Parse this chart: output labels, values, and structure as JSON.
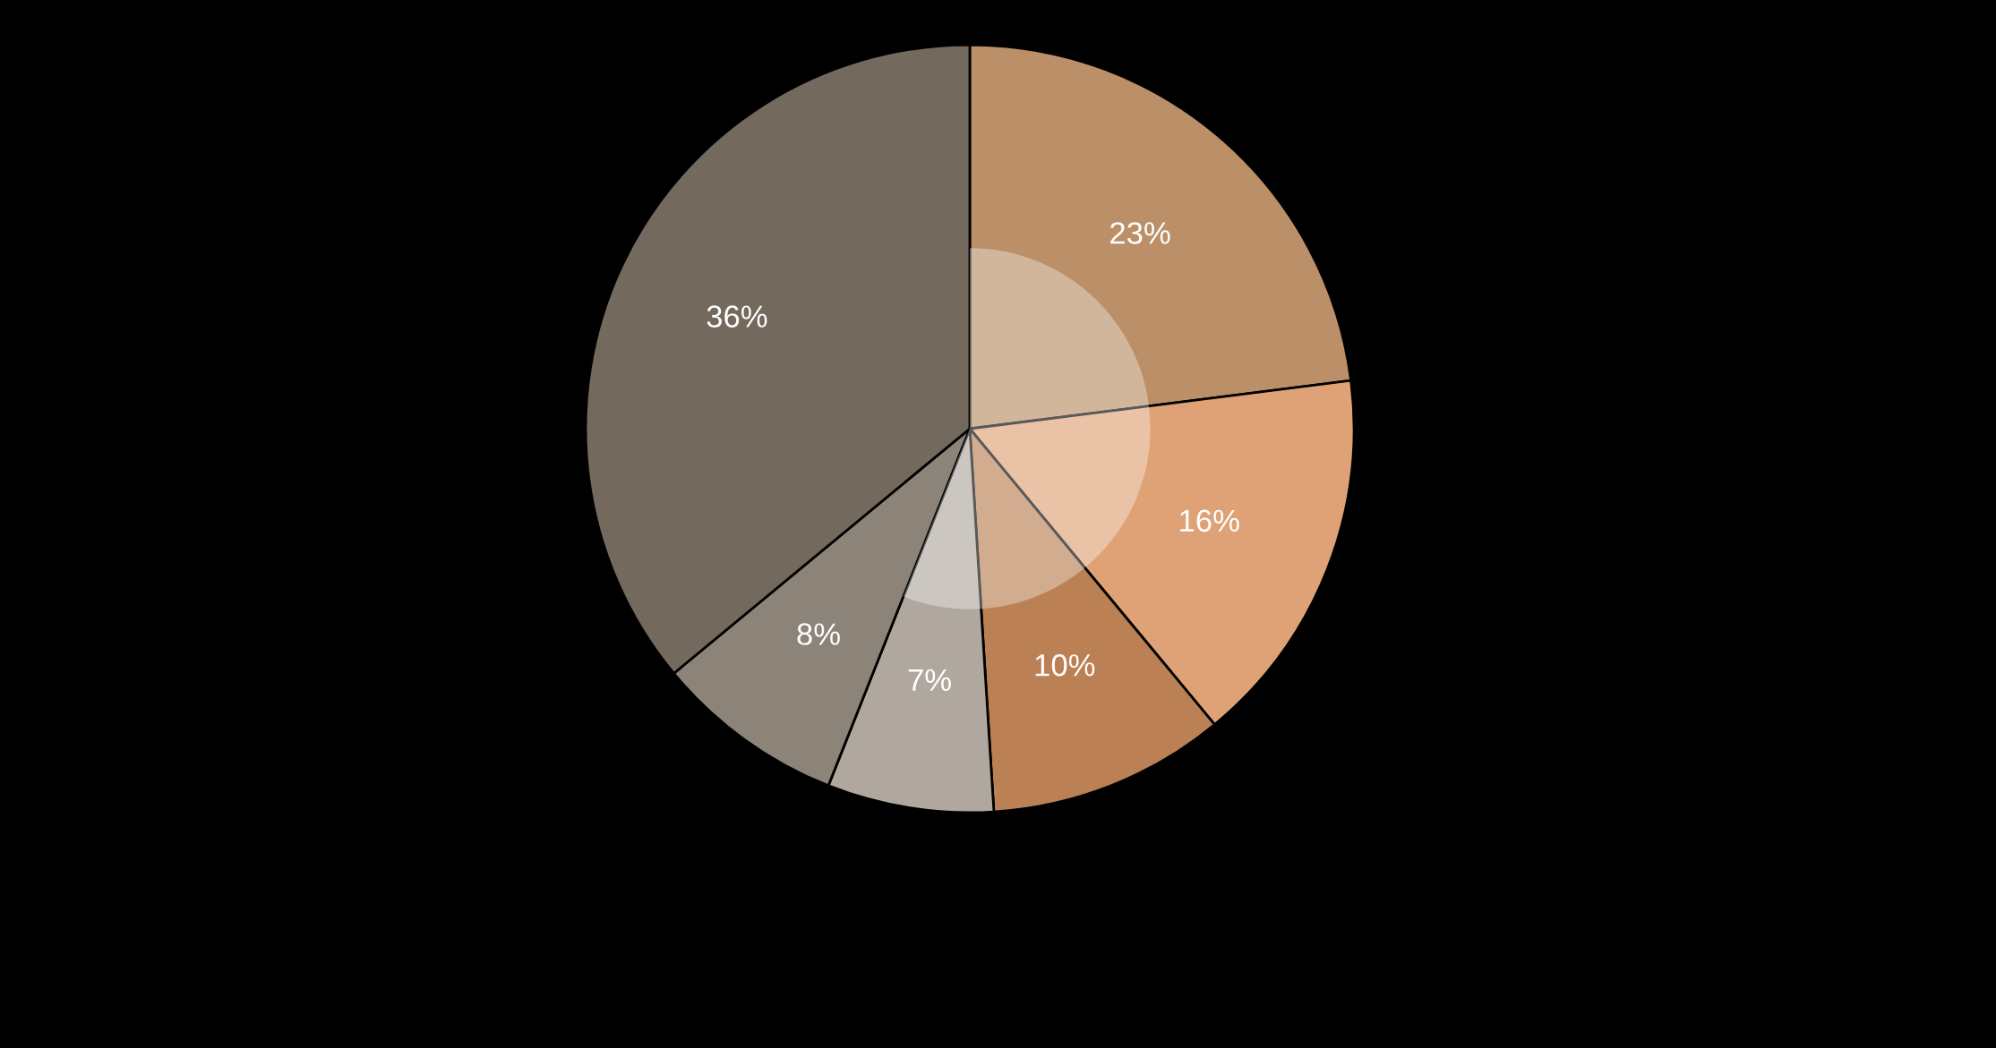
{
  "chart_data": {
    "type": "pie",
    "categories": [
      null,
      null,
      null,
      null,
      null,
      null
    ],
    "values": [
      23,
      16,
      10,
      7,
      8,
      36
    ],
    "colors": [
      "#bb9068",
      "#dfa276",
      "#bb8054",
      "#b0a89f",
      "#8c8379",
      "#73695d"
    ],
    "value_labels": [
      "23%",
      "16%",
      "10%",
      "7%",
      "8%",
      "36%"
    ]
  }
}
